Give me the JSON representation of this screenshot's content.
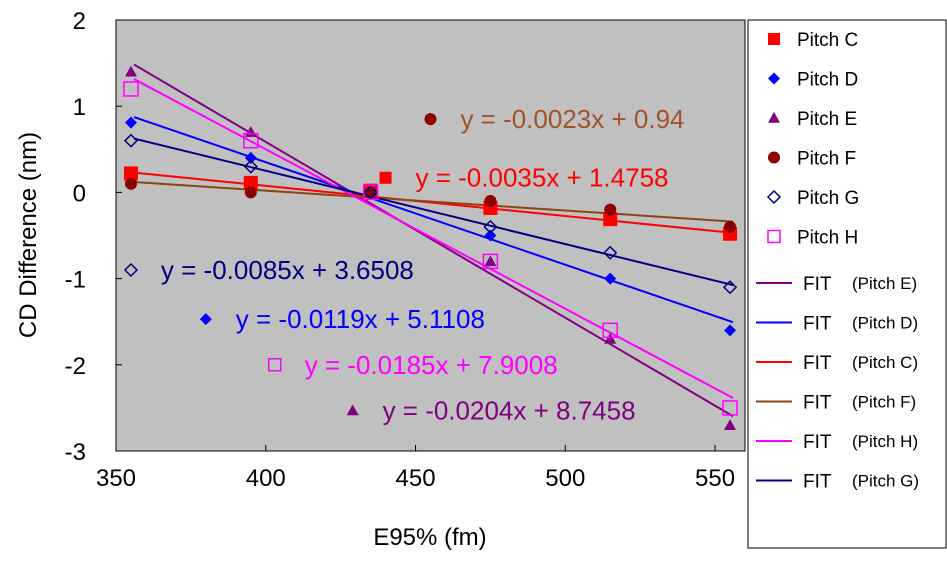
{
  "chart_data": {
    "type": "scatter",
    "title": "",
    "xlabel": "E95% (fm)",
    "ylabel": "CD Difference (nm)",
    "xlim": [
      350,
      560
    ],
    "ylim": [
      -3,
      2
    ],
    "x_ticks": [
      350,
      400,
      450,
      500,
      550
    ],
    "y_ticks": [
      -3,
      -2,
      -1,
      0,
      1,
      2
    ],
    "x_tick_labels": [
      "350",
      "400",
      "450",
      "500",
      "550"
    ],
    "y_tick_labels": [
      "-3",
      "-2",
      "-1",
      "0",
      "1",
      "2"
    ],
    "plot_background": "#c0c0c0",
    "grid": false,
    "legend_position": "right",
    "series": [
      {
        "name": "Pitch C",
        "marker": "square-filled",
        "color": "#ff0000",
        "x": [
          355,
          395,
          435,
          475,
          515,
          555
        ],
        "y": [
          0.22,
          0.11,
          0.02,
          -0.18,
          -0.31,
          -0.48
        ]
      },
      {
        "name": "Pitch D",
        "marker": "diamond-filled",
        "color": "#0000ff",
        "x": [
          355,
          395,
          435,
          475,
          515,
          555
        ],
        "y": [
          0.81,
          0.4,
          0.0,
          -0.5,
          -1.0,
          -1.6
        ]
      },
      {
        "name": "Pitch E",
        "marker": "triangle-filled",
        "color": "#800080",
        "x": [
          355,
          395,
          435,
          475,
          515,
          555
        ],
        "y": [
          1.4,
          0.7,
          0.0,
          -0.8,
          -1.7,
          -2.7
        ]
      },
      {
        "name": "Pitch F",
        "marker": "circle-filled",
        "color": "#8b0000",
        "x": [
          355,
          395,
          435,
          475,
          515,
          555
        ],
        "y": [
          0.1,
          0.0,
          0.0,
          -0.1,
          -0.2,
          -0.4
        ]
      },
      {
        "name": "Pitch G",
        "marker": "diamond-open",
        "color": "#000080",
        "x": [
          355,
          395,
          435,
          475,
          515,
          555
        ],
        "y": [
          0.6,
          0.3,
          0.0,
          -0.4,
          -0.7,
          -1.1
        ]
      },
      {
        "name": "Pitch H",
        "marker": "square-open",
        "color": "#ff00ff",
        "x": [
          355,
          395,
          435,
          475,
          515,
          555
        ],
        "y": [
          1.2,
          0.6,
          0.0,
          -0.8,
          -1.6,
          -2.5
        ]
      }
    ],
    "fits": [
      {
        "legend_label": "FIT",
        "legend_note": "(Pitch E)",
        "color": "#800080",
        "slope": -0.0204,
        "intercept": 8.7458,
        "x_range": [
          356,
          556
        ]
      },
      {
        "legend_label": "FIT",
        "legend_note": "(Pitch D)",
        "color": "#0000ff",
        "slope": -0.0119,
        "intercept": 5.1108,
        "x_range": [
          356,
          556
        ]
      },
      {
        "legend_label": "FIT",
        "legend_note": "(Pitch C)",
        "color": "#ff0000",
        "slope": -0.0035,
        "intercept": 1.4758,
        "x_range": [
          356,
          556
        ]
      },
      {
        "legend_label": "FIT",
        "legend_note": "(Pitch F)",
        "color": "#8b4513",
        "slope": -0.0023,
        "intercept": 0.94,
        "x_range": [
          356,
          556
        ]
      },
      {
        "legend_label": "FIT",
        "legend_note": "(Pitch H)",
        "color": "#ff00ff",
        "slope": -0.0185,
        "intercept": 7.9008,
        "x_range": [
          356,
          556
        ]
      },
      {
        "legend_label": "FIT",
        "legend_note": "(Pitch G)",
        "color": "#000080",
        "slope": -0.0085,
        "intercept": 3.6508,
        "x_range": [
          356,
          556
        ]
      }
    ],
    "annotations": [
      {
        "text": "y = -0.0023x + 0.94",
        "color": "#a0522d",
        "marker": "circle-filled",
        "marker_color": "#8b0000",
        "x": 455,
        "y": 0.85,
        "text_x": 465
      },
      {
        "text": "y = -0.0035x + 1.4758",
        "color": "#ff0000",
        "marker": "square-filled",
        "marker_color": "#ff0000",
        "x": 440,
        "y": 0.17,
        "text_x": 450
      },
      {
        "text": "y = -0.0085x + 3.6508",
        "color": "#000080",
        "marker": "diamond-open",
        "marker_color": "#000080",
        "x": 355,
        "y": -0.9,
        "text_x": 365
      },
      {
        "text": "y = -0.0119x + 5.1108",
        "color": "#0000ff",
        "marker": "diamond-filled",
        "marker_color": "#0000ff",
        "x": 380,
        "y": -1.47,
        "text_x": 390
      },
      {
        "text": "y = -0.0185x + 7.9008",
        "color": "#ff00ff",
        "marker": "square-open",
        "marker_color": "#ff00ff",
        "x": 403,
        "y": -2.0,
        "text_x": 413
      },
      {
        "text": "y = -0.0204x + 8.7458",
        "color": "#800080",
        "marker": "triangle-filled",
        "marker_color": "#800080",
        "x": 429,
        "y": -2.53,
        "text_x": 439
      }
    ]
  }
}
